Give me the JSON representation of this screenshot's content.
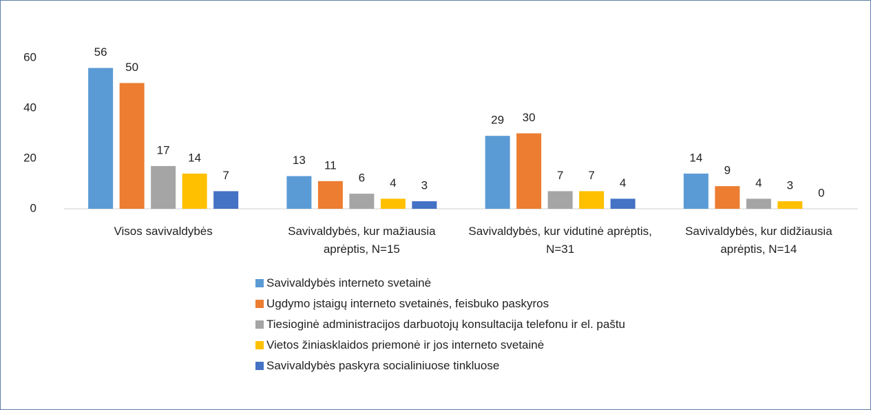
{
  "chart_data": {
    "type": "bar",
    "categories": [
      "Visos savivaldybės",
      "Savivaldybės, kur mažiausia aprėptis, N=15",
      "Savivaldybės, kur vidutinė aprėptis, N=31",
      "Savivaldybės, kur didžiausia aprėptis, N=14"
    ],
    "series": [
      {
        "name": "Savivaldybės interneto svetainė",
        "color": "#5b9bd5",
        "values": [
          56,
          13,
          29,
          14
        ]
      },
      {
        "name": "Ugdymo įstaigų interneto svetainės, feisbuko paskyros",
        "color": "#ed7d31",
        "values": [
          50,
          11,
          30,
          9
        ]
      },
      {
        "name": "Tiesioginė administracijos darbuotojų konsultacija telefonu ir el. paštu",
        "color": "#a5a5a5",
        "values": [
          17,
          6,
          7,
          4
        ]
      },
      {
        "name": "Vietos žiniasklaidos priemonė ir jos interneto svetainė",
        "color": "#ffc000",
        "values": [
          14,
          4,
          7,
          3
        ]
      },
      {
        "name": "Savivaldybės paskyra socialiniuose tinkluose",
        "color": "#4472c4",
        "values": [
          7,
          3,
          4,
          0
        ]
      }
    ],
    "ylim": [
      0,
      60
    ],
    "yticks": [
      0,
      20,
      40,
      60
    ],
    "legend": "bottom"
  }
}
